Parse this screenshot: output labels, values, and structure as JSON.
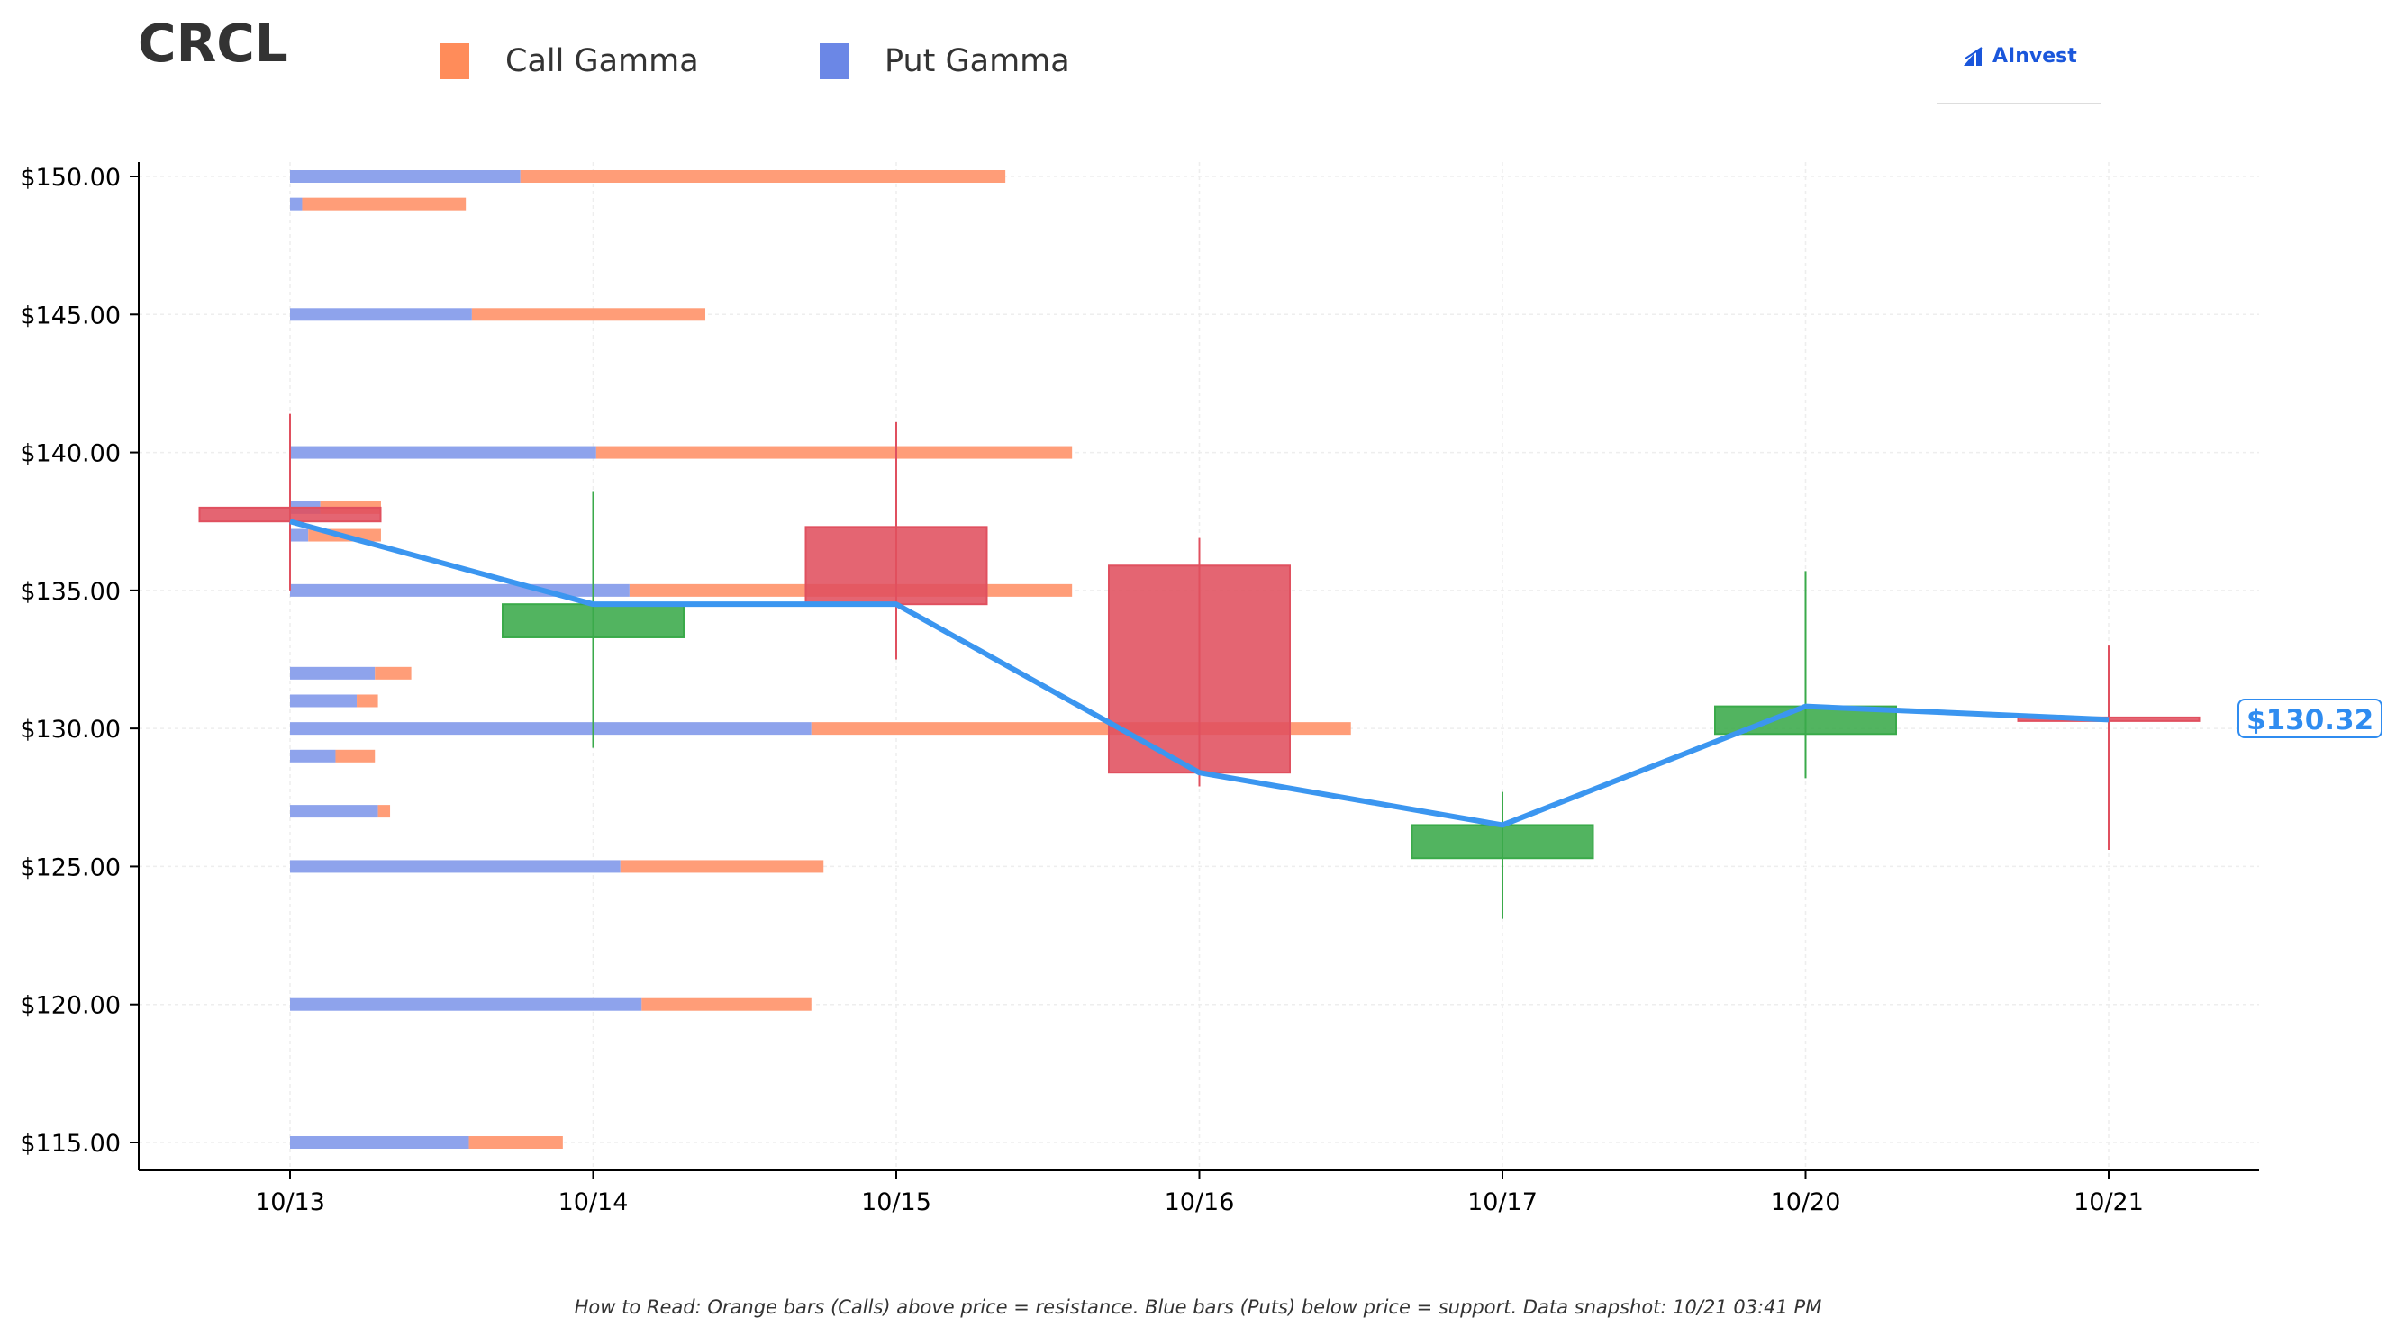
{
  "title": "CRCL",
  "legend": [
    {
      "label": "Call Gamma",
      "color": "#ff8c5a"
    },
    {
      "label": "Put Gamma",
      "color": "#6b87e6"
    }
  ],
  "logo": {
    "text": "AInvest",
    "icon": "ainvest-logo-icon"
  },
  "current_price_label": "$130.32",
  "footnote": "How to Read: Orange bars (Calls) above price = resistance. Blue bars (Puts) below price = support. Data snapshot: 10/21 03:41 PM",
  "chart_data": {
    "type": "candlestick",
    "title": "CRCL",
    "categories": [
      "10/13",
      "10/14",
      "10/15",
      "10/16",
      "10/17",
      "10/20",
      "10/21"
    ],
    "y_tick_labels": [
      "$115.00",
      "$120.00",
      "$125.00",
      "$130.00",
      "$135.00",
      "$140.00",
      "$145.00",
      "$150.00"
    ],
    "y_ticks": [
      115,
      120,
      125,
      130,
      135,
      140,
      145,
      150
    ],
    "ylim": [
      113.5,
      152.5
    ],
    "grid": true,
    "legend_position": "top-left",
    "colors": {
      "up": "#3aaa4a",
      "down": "#e0505f",
      "line": "#3b96f0",
      "call": "#ff9d78",
      "put": "#8ea3ec"
    },
    "candles": [
      {
        "date": "10/13",
        "open": 138.0,
        "close": 137.5,
        "high": 141.4,
        "low": 135.0
      },
      {
        "date": "10/14",
        "open": 133.3,
        "close": 134.5,
        "high": 138.6,
        "low": 129.3
      },
      {
        "date": "10/15",
        "open": 137.3,
        "close": 134.5,
        "high": 141.1,
        "low": 132.5
      },
      {
        "date": "10/16",
        "open": 135.9,
        "close": 128.4,
        "high": 136.9,
        "low": 127.9
      },
      {
        "date": "10/17",
        "open": 125.3,
        "close": 126.5,
        "high": 127.7,
        "low": 123.1
      },
      {
        "date": "10/20",
        "open": 129.8,
        "close": 130.8,
        "high": 135.7,
        "low": 128.2
      },
      {
        "date": "10/21",
        "open": 130.4,
        "close": 130.3,
        "high": 133.0,
        "low": 125.6
      }
    ],
    "close_line": [
      137.5,
      134.5,
      134.5,
      128.4,
      126.5,
      130.8,
      130.32
    ],
    "gamma_units": "day-widths",
    "gamma_levels": [
      {
        "strike": 150,
        "put": 0.76,
        "call": 1.6
      },
      {
        "strike": 149,
        "put": 0.04,
        "call": 0.54
      },
      {
        "strike": 145,
        "put": 0.6,
        "call": 0.77
      },
      {
        "strike": 140,
        "put": 1.01,
        "call": 1.57
      },
      {
        "strike": 138,
        "put": 0.1,
        "call": 0.2
      },
      {
        "strike": 137,
        "put": 0.06,
        "call": 0.24
      },
      {
        "strike": 135,
        "put": 1.12,
        "call": 1.46
      },
      {
        "strike": 132,
        "put": 0.28,
        "call": 0.12
      },
      {
        "strike": 131,
        "put": 0.22,
        "call": 0.07
      },
      {
        "strike": 130,
        "put": 1.72,
        "call": 1.78
      },
      {
        "strike": 129,
        "put": 0.15,
        "call": 0.13
      },
      {
        "strike": 127,
        "put": 0.29,
        "call": 0.04
      },
      {
        "strike": 125,
        "put": 1.09,
        "call": 0.67
      },
      {
        "strike": 120,
        "put": 1.16,
        "call": 0.56
      },
      {
        "strike": 115,
        "put": 0.59,
        "call": 0.31
      }
    ]
  }
}
